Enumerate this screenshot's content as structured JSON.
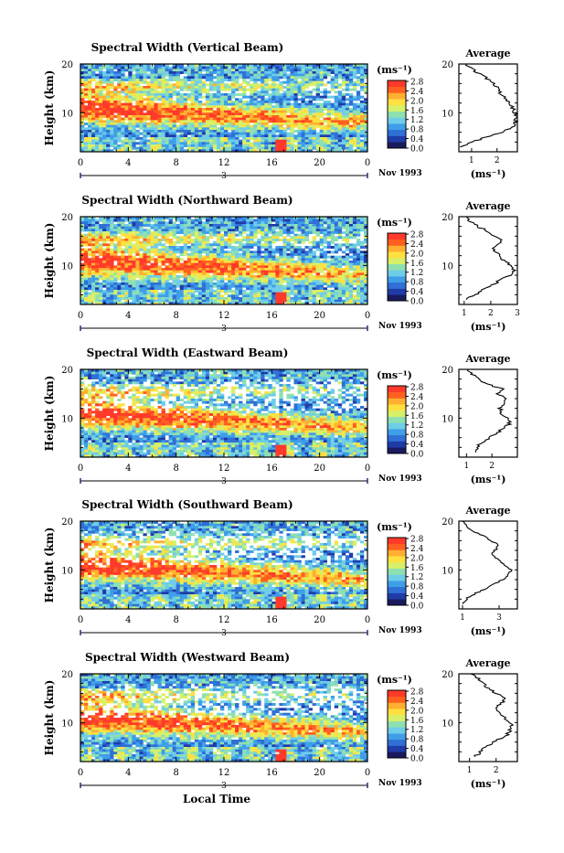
{
  "figure": {
    "xlabel": "Local Time",
    "colorbar_unit": "(ms⁻¹)",
    "colorbar_ticks": [
      "0.0",
      "0.4",
      "0.8",
      "1.2",
      "1.6",
      "2.0",
      "2.4",
      "2.8"
    ],
    "colorbar_colors": [
      "#1a1a5e",
      "#1f3ba8",
      "#2f6fd6",
      "#3f9ee8",
      "#6fcde8",
      "#8fe0b0",
      "#d8f068",
      "#ffe040",
      "#ffb030",
      "#ff6020",
      "#ff3a2a"
    ],
    "date_label": "Nov 1993",
    "date_marker": "3",
    "x_ticks": [
      "0",
      "4",
      "8",
      "12",
      "16",
      "20",
      "0"
    ],
    "y_label": "Height (km)",
    "y_ticks": [
      "20",
      "10"
    ],
    "avg_title": "Average",
    "avg_xlabel": "(ms⁻¹)"
  },
  "chart_data": [
    {
      "type": "heatmap",
      "title": "Spectral Width (Vertical Beam)",
      "ylabel": "Height (km)",
      "ylim": [
        2,
        20
      ],
      "xlabel": "",
      "x_ticks": [
        "0",
        "4",
        "8",
        "12",
        "16",
        "20",
        "0"
      ],
      "colorbar_range": [
        0.0,
        2.8
      ],
      "profile": {
        "title": "Average",
        "xlabel": "(ms⁻¹)",
        "x_ticks": [
          "1",
          "2"
        ],
        "xlim": [
          0.5,
          2.8
        ],
        "height_km": [
          3,
          4,
          5,
          6,
          7,
          8,
          9,
          10,
          11,
          12,
          13,
          14,
          15,
          16,
          17,
          18,
          19,
          20
        ],
        "width_ms": [
          0.6,
          1.0,
          1.6,
          2.2,
          2.6,
          2.7,
          2.8,
          2.7,
          2.6,
          2.5,
          2.3,
          2.1,
          2.0,
          1.9,
          1.6,
          1.3,
          1.0,
          0.8
        ]
      }
    },
    {
      "type": "heatmap",
      "title": "Spectral Width (Northward Beam)",
      "ylabel": "Height (km)",
      "ylim": [
        2,
        20
      ],
      "xlabel": "",
      "x_ticks": [
        "0",
        "4",
        "8",
        "12",
        "16",
        "20",
        "0"
      ],
      "colorbar_range": [
        0.0,
        2.8
      ],
      "profile": {
        "title": "Average",
        "xlabel": "(ms⁻¹)",
        "x_ticks": [
          "1",
          "2",
          "3"
        ],
        "xlim": [
          0.8,
          3.0
        ],
        "height_km": [
          3,
          4,
          5,
          6,
          7,
          8,
          9,
          10,
          11,
          12,
          13,
          14,
          15,
          16,
          17,
          18,
          19,
          20
        ],
        "width_ms": [
          1.1,
          1.4,
          1.7,
          2.0,
          2.4,
          2.7,
          2.9,
          2.8,
          2.5,
          2.3,
          2.1,
          2.2,
          2.4,
          2.2,
          1.9,
          1.5,
          1.2,
          1.0
        ]
      }
    },
    {
      "type": "heatmap",
      "title": "Spectral Width (Eastward Beam)",
      "ylabel": "Height (km)",
      "ylim": [
        2,
        20
      ],
      "xlabel": "",
      "x_ticks": [
        "0",
        "4",
        "8",
        "12",
        "16",
        "20",
        "0"
      ],
      "colorbar_range": [
        0.0,
        2.8
      ],
      "profile": {
        "title": "Average",
        "xlabel": "(ms⁻¹)",
        "x_ticks": [
          "1",
          "2"
        ],
        "xlim": [
          0.7,
          3.0
        ],
        "height_km": [
          3,
          4,
          5,
          6,
          7,
          8,
          9,
          10,
          11,
          12,
          13,
          14,
          15,
          16,
          17,
          18,
          19,
          20
        ],
        "width_ms": [
          1.3,
          1.4,
          1.6,
          1.9,
          2.2,
          2.5,
          2.7,
          2.6,
          2.4,
          2.3,
          2.5,
          2.6,
          2.2,
          2.4,
          1.8,
          1.5,
          1.2,
          1.0
        ]
      }
    },
    {
      "type": "heatmap",
      "title": "Spectral Width (Southward Beam)",
      "ylabel": "Height (km)",
      "ylim": [
        2,
        20
      ],
      "xlabel": "",
      "x_ticks": [
        "0",
        "4",
        "8",
        "12",
        "16",
        "20",
        "0"
      ],
      "colorbar_range": [
        0.0,
        2.8
      ],
      "profile": {
        "title": "Average",
        "xlabel": "(ms⁻¹)",
        "x_ticks": [
          "1",
          "3"
        ],
        "xlim": [
          0.8,
          4.0
        ],
        "height_km": [
          3,
          4,
          5,
          6,
          7,
          8,
          9,
          10,
          11,
          12,
          13,
          14,
          15,
          16,
          17,
          18,
          19,
          20
        ],
        "width_ms": [
          1.0,
          1.2,
          1.6,
          2.2,
          2.7,
          3.2,
          3.5,
          3.7,
          3.3,
          3.0,
          2.6,
          2.8,
          3.0,
          2.6,
          2.1,
          1.6,
          1.2,
          1.0
        ]
      }
    },
    {
      "type": "heatmap",
      "title": "Spectral Width (Westward Beam)",
      "ylabel": "Height (km)",
      "ylim": [
        2,
        20
      ],
      "xlabel": "Local Time",
      "x_ticks": [
        "0",
        "4",
        "8",
        "12",
        "16",
        "20",
        "0"
      ],
      "colorbar_range": [
        0.0,
        2.8
      ],
      "profile": {
        "title": "Average",
        "xlabel": "(ms⁻¹)",
        "x_ticks": [
          "1",
          "2"
        ],
        "xlim": [
          0.6,
          2.8
        ],
        "height_km": [
          3,
          4,
          5,
          6,
          7,
          8,
          9,
          10,
          11,
          12,
          13,
          14,
          15,
          16,
          17,
          18,
          19,
          20
        ],
        "width_ms": [
          1.2,
          1.4,
          1.6,
          1.9,
          2.3,
          2.5,
          2.6,
          2.5,
          2.3,
          2.1,
          2.0,
          2.2,
          2.3,
          2.0,
          1.7,
          1.5,
          1.3,
          1.1
        ]
      }
    }
  ]
}
